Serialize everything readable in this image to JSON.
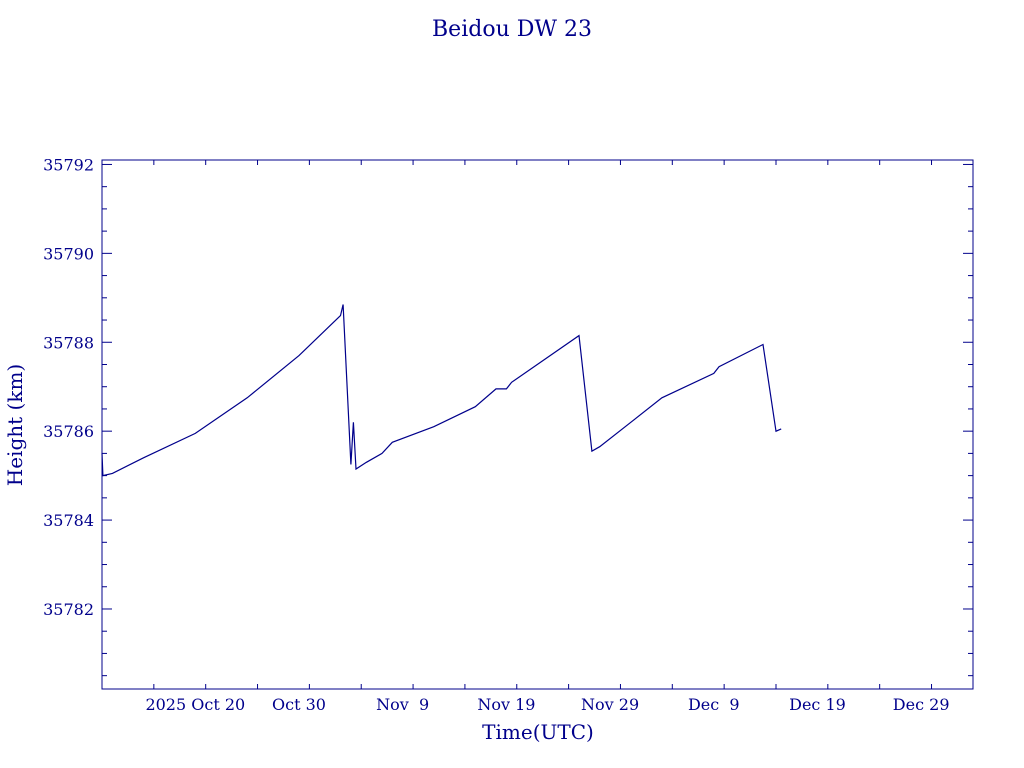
{
  "chart_data": {
    "type": "line",
    "title": "Beidou DW 23",
    "xlabel": "Time(UTC)",
    "ylabel": "Height (km)",
    "color": "#00008b",
    "x_range_days_from_label": [
      "2025-10-11",
      "2026-01-03"
    ],
    "x_ticks": [
      {
        "date": "2025-10-20",
        "label": "2025 Oct 20"
      },
      {
        "date": "2025-10-30",
        "label": "Oct 30"
      },
      {
        "date": "2025-11-09",
        "label": "Nov  9"
      },
      {
        "date": "2025-11-19",
        "label": "Nov 19"
      },
      {
        "date": "2025-11-29",
        "label": "Nov 29"
      },
      {
        "date": "2025-12-09",
        "label": "Dec  9"
      },
      {
        "date": "2025-12-19",
        "label": "Dec 19"
      },
      {
        "date": "2025-12-29",
        "label": "Dec 29"
      }
    ],
    "y_ticks": [
      35782,
      35784,
      35786,
      35788,
      35790,
      35792
    ],
    "ylim": [
      35780.2,
      35792.1
    ],
    "grid": false,
    "series": [
      {
        "points": [
          [
            "2025-10-11T00:00",
            35785.5
          ],
          [
            "2025-10-11T02:00",
            35785.0
          ],
          [
            "2025-10-12T00:00",
            35785.05
          ],
          [
            "2025-10-15T00:00",
            35785.4
          ],
          [
            "2025-10-20T00:00",
            35785.95
          ],
          [
            "2025-10-25T00:00",
            35786.75
          ],
          [
            "2025-10-30T00:00",
            35787.7
          ],
          [
            "2025-11-03T00:00",
            35788.6
          ],
          [
            "2025-11-03T06:00",
            35788.85
          ],
          [
            "2025-11-04T00:00",
            35785.25
          ],
          [
            "2025-11-04T06:00",
            35786.2
          ],
          [
            "2025-11-04T12:00",
            35785.15
          ],
          [
            "2025-11-05T12:00",
            35785.3
          ],
          [
            "2025-11-07T00:00",
            35785.5
          ],
          [
            "2025-11-08T00:00",
            35785.75
          ],
          [
            "2025-11-12T00:00",
            35786.1
          ],
          [
            "2025-11-16T00:00",
            35786.55
          ],
          [
            "2025-11-18T00:00",
            35786.95
          ],
          [
            "2025-11-19T00:00",
            35786.95
          ],
          [
            "2025-11-19T12:00",
            35787.1
          ],
          [
            "2025-11-26T00:00",
            35788.15
          ],
          [
            "2025-11-27T06:00",
            35785.55
          ],
          [
            "2025-11-28T00:00",
            35785.65
          ],
          [
            "2025-12-01T00:00",
            35786.2
          ],
          [
            "2025-12-04T00:00",
            35786.75
          ],
          [
            "2025-12-09T00:00",
            35787.3
          ],
          [
            "2025-12-09T12:00",
            35787.45
          ],
          [
            "2025-12-13T18:00",
            35787.95
          ],
          [
            "2025-12-15T00:00",
            35786.0
          ],
          [
            "2025-12-15T12:00",
            35786.05
          ]
        ]
      }
    ]
  }
}
